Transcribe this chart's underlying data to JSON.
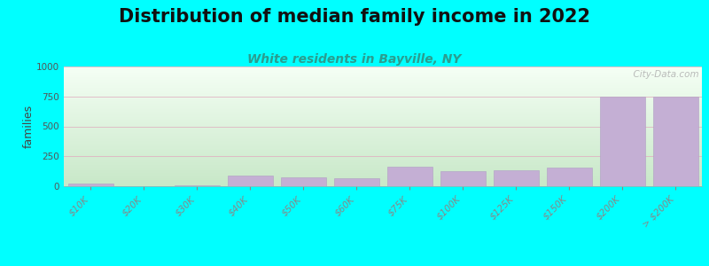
{
  "title": "Distribution of median family income in 2022",
  "subtitle": "White residents in Bayville, NY",
  "ylabel": "families",
  "background_color": "#00FFFF",
  "bar_color": "#c4afd4",
  "bar_edge_color": "#b09ec4",
  "grid_color": "#e0b0c0",
  "categories": [
    "$10K",
    "$20K",
    "$30K",
    "$40K",
    "$50K",
    "$60K",
    "$75K",
    "$100K",
    "$125K",
    "$150K",
    "$200K",
    "> $200K"
  ],
  "values": [
    20,
    3,
    10,
    90,
    75,
    70,
    160,
    125,
    135,
    155,
    750,
    750
  ],
  "ylim": [
    0,
    1000
  ],
  "yticks": [
    0,
    250,
    500,
    750,
    1000
  ],
  "watermark": "  City-Data.com",
  "title_fontsize": 15,
  "subtitle_fontsize": 10,
  "ylabel_fontsize": 9,
  "tick_fontsize": 7.5
}
